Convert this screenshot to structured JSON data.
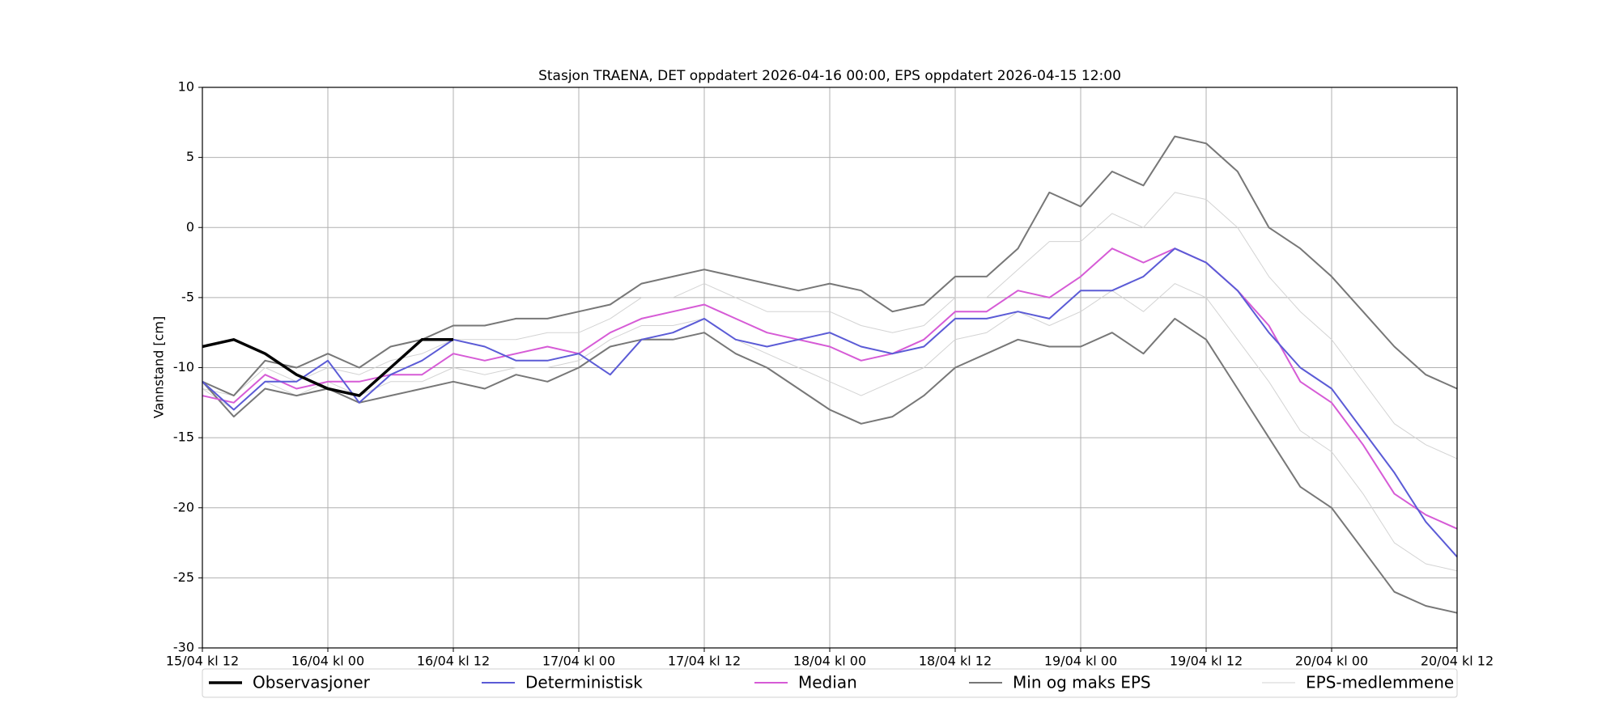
{
  "chart_data": {
    "type": "line",
    "title": "Stasjon TRAENA, DET oppdatert 2026-04-16 00:00, EPS oppdatert 2026-04-15 12:00",
    "ylabel": "Vannstand [cm]",
    "x": [
      0,
      3,
      6,
      9,
      12,
      15,
      18,
      21,
      24,
      27,
      30,
      33,
      36,
      39,
      42,
      45,
      48,
      51,
      54,
      57,
      60,
      63,
      66,
      69,
      72,
      75,
      78,
      81,
      84,
      87,
      90,
      93,
      96,
      99,
      102,
      105,
      108,
      111,
      114,
      117,
      120
    ],
    "xlim": [
      0,
      120
    ],
    "xticks": [
      {
        "value": 0,
        "label": "15/04 kl 12"
      },
      {
        "value": 12,
        "label": "16/04 kl 00"
      },
      {
        "value": 24,
        "label": "16/04 kl 12"
      },
      {
        "value": 36,
        "label": "17/04 kl 00"
      },
      {
        "value": 48,
        "label": "17/04 kl 12"
      },
      {
        "value": 60,
        "label": "18/04 kl 00"
      },
      {
        "value": 72,
        "label": "18/04 kl 12"
      },
      {
        "value": 84,
        "label": "19/04 kl 00"
      },
      {
        "value": 96,
        "label": "19/04 kl 12"
      },
      {
        "value": 108,
        "label": "20/04 kl 00"
      },
      {
        "value": 120,
        "label": "20/04 kl 12"
      }
    ],
    "ylim": [
      -30,
      10
    ],
    "yticks": [
      -30,
      -25,
      -20,
      -15,
      -10,
      -5,
      0,
      5,
      10
    ],
    "grid": true,
    "legend": "bottom",
    "series": [
      {
        "name": "Observasjoner",
        "color": "#000000",
        "linewidth": 3.5,
        "values": [
          -8.5,
          -8,
          -9,
          -10.5,
          -11.5,
          -12,
          -10,
          -8,
          -8,
          null,
          null,
          null,
          null,
          null,
          null,
          null,
          null,
          null,
          null,
          null,
          null,
          null,
          null,
          null,
          null,
          null,
          null,
          null,
          null,
          null,
          null,
          null,
          null,
          null,
          null,
          null,
          null,
          null,
          null,
          null,
          null
        ]
      },
      {
        "name": "Deterministisk",
        "color": "#5b5bd6",
        "linewidth": 2,
        "values": [
          -11,
          -13,
          -11,
          -11,
          -9.5,
          -12.5,
          -10.5,
          -9.5,
          -8,
          -8.5,
          -9.5,
          -9.5,
          -9,
          -10.5,
          -8,
          -7.5,
          -6.5,
          -8,
          -8.5,
          -8,
          -7.5,
          -8.5,
          -9,
          -8.5,
          -6.5,
          -6.5,
          -6,
          -6.5,
          -4.5,
          -4.5,
          -3.5,
          -1.5,
          -2.5,
          -4.5,
          -7.5,
          -10,
          -11.5,
          -14.5,
          -17.5,
          -21,
          -23.5
        ]
      },
      {
        "name": "Median",
        "color": "#d65bd6",
        "linewidth": 2,
        "values": [
          -12,
          -12.5,
          -10.5,
          -11.5,
          -11,
          -11,
          -10.5,
          -10.5,
          -9,
          -9.5,
          -9,
          -8.5,
          -9,
          -7.5,
          -6.5,
          -6,
          -5.5,
          -6.5,
          -7.5,
          -8,
          -8.5,
          -9.5,
          -9,
          -8,
          -6,
          -6,
          -4.5,
          -5,
          -3.5,
          -1.5,
          -2.5,
          -1.5,
          -2.5,
          -4.5,
          -7,
          -11,
          -12.5,
          -15.5,
          -19,
          -20.5,
          -21.5
        ]
      },
      {
        "name": "Min og maks EPS",
        "color": "#777777",
        "linewidth": 2,
        "values": [
          -11,
          -13.5,
          -11.5,
          -12,
          -11.5,
          -12.5,
          -12,
          -11.5,
          -11,
          -11.5,
          -10.5,
          -11,
          -10,
          -8.5,
          -8,
          -8,
          -7.5,
          -9,
          -10,
          -11.5,
          -13,
          -14,
          -13.5,
          -12,
          -10,
          -9,
          -8,
          -8.5,
          -8.5,
          -7.5,
          -9,
          -6.5,
          -8,
          -11.5,
          -15,
          -18.5,
          -20,
          -23,
          -26,
          -27,
          -27.5
        ]
      },
      {
        "name": "Min og maks EPS",
        "color": "#777777",
        "linewidth": 2,
        "values": [
          -11,
          -12,
          -9.5,
          -10,
          -9,
          -10,
          -8.5,
          -8,
          -7,
          -7,
          -6.5,
          -6.5,
          -6,
          -5.5,
          -4,
          -3.5,
          -3,
          -3.5,
          -4,
          -4.5,
          -4,
          -4.5,
          -6,
          -5.5,
          -3.5,
          -3.5,
          -1.5,
          2.5,
          1.5,
          4,
          3,
          6.5,
          6,
          4,
          0,
          -1.5,
          -3.5,
          -6,
          -8.5,
          -10.5,
          -11.5
        ]
      },
      {
        "name": "EPS-medlemmene",
        "color": "#d3d3d3",
        "linewidth": 1,
        "values": [
          -11.5,
          -12,
          -10,
          -11,
          -10,
          -10.5,
          -9.5,
          -9,
          -8,
          -8,
          -8,
          -7.5,
          -7.5,
          -6.5,
          -5,
          -5,
          -4,
          -5,
          -6,
          -6,
          -6,
          -7,
          -7.5,
          -7,
          -5,
          -5,
          -3,
          -1,
          -1,
          1,
          0,
          2.5,
          2,
          0,
          -3.5,
          -6,
          -8,
          -11,
          -14,
          -15.5,
          -16.5
        ]
      },
      {
        "name": "EPS-medlemmene",
        "color": "#d3d3d3",
        "linewidth": 1,
        "values": [
          -11.5,
          -13,
          -11,
          -12,
          -11,
          -12,
          -11,
          -11,
          -10,
          -10.5,
          -10,
          -10,
          -9.5,
          -8,
          -7,
          -7,
          -6.5,
          -8,
          -9,
          -10,
          -11,
          -12,
          -11,
          -10,
          -8,
          -7.5,
          -6,
          -7,
          -6,
          -4.5,
          -6,
          -4,
          -5,
          -8,
          -11,
          -14.5,
          -16,
          -19,
          -22.5,
          -24,
          -24.5
        ]
      }
    ]
  }
}
